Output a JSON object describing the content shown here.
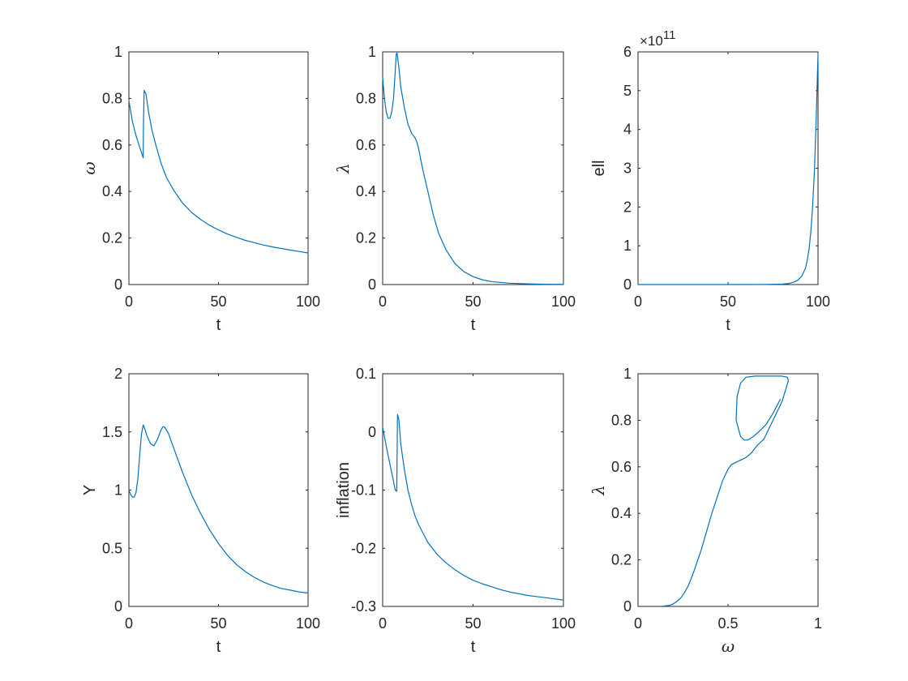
{
  "colors": {
    "line": "#0072bd",
    "axes": "#262626",
    "background": "#ffffff"
  },
  "chart_data": [
    {
      "type": "line",
      "id": "omega-vs-t",
      "xlabel": "t",
      "ylabel": "ω",
      "xlim": [
        0,
        100
      ],
      "ylim": [
        0,
        1
      ],
      "xticks": [
        0,
        50,
        100
      ],
      "yticks": [
        0,
        0.2,
        0.4,
        0.6,
        0.8,
        1
      ],
      "xtick_labels": [
        "0",
        "50",
        "100"
      ],
      "ytick_labels": [
        "0",
        "0.2",
        "0.4",
        "0.6",
        "0.8",
        "1"
      ],
      "exponent": "",
      "grid": false,
      "series": [
        {
          "x": [
            0,
            2,
            4,
            6,
            8,
            8.1,
            8.5,
            9.5,
            11,
            13,
            15,
            18,
            21,
            25,
            30,
            35,
            40,
            45,
            50,
            55,
            60,
            65,
            70,
            75,
            80,
            85,
            90,
            95,
            100
          ],
          "y": [
            0.79,
            0.7,
            0.64,
            0.59,
            0.545,
            0.68,
            0.835,
            0.82,
            0.74,
            0.66,
            0.6,
            0.52,
            0.46,
            0.405,
            0.35,
            0.31,
            0.28,
            0.255,
            0.235,
            0.217,
            0.203,
            0.19,
            0.18,
            0.17,
            0.162,
            0.155,
            0.148,
            0.142,
            0.136
          ]
        }
      ]
    },
    {
      "type": "line",
      "id": "lambda-vs-t",
      "xlabel": "t",
      "ylabel": "λ",
      "xlim": [
        0,
        100
      ],
      "ylim": [
        0,
        1
      ],
      "xticks": [
        0,
        50,
        100
      ],
      "yticks": [
        0,
        0.2,
        0.4,
        0.6,
        0.8,
        1
      ],
      "xtick_labels": [
        "0",
        "50",
        "100"
      ],
      "ytick_labels": [
        "0",
        "0.2",
        "0.4",
        "0.6",
        "0.8",
        "1"
      ],
      "exponent": "",
      "grid": false,
      "series": [
        {
          "x": [
            0,
            1,
            2,
            3,
            4,
            5,
            6,
            7,
            7.5,
            8,
            9,
            10,
            12,
            14,
            16,
            18,
            19,
            20,
            22,
            25,
            28,
            31,
            35,
            40,
            45,
            50,
            55,
            60,
            70,
            80,
            90,
            100
          ],
          "y": [
            0.89,
            0.8,
            0.74,
            0.715,
            0.715,
            0.74,
            0.8,
            0.92,
            0.99,
            0.995,
            0.93,
            0.85,
            0.76,
            0.69,
            0.65,
            0.63,
            0.61,
            0.58,
            0.5,
            0.4,
            0.3,
            0.22,
            0.15,
            0.09,
            0.055,
            0.034,
            0.021,
            0.013,
            0.006,
            0.003,
            0.0015,
            0.001
          ]
        }
      ]
    },
    {
      "type": "line",
      "id": "ell-vs-t",
      "xlabel": "t",
      "ylabel": "ell",
      "xlim": [
        0,
        100
      ],
      "ylim": [
        0,
        6
      ],
      "xticks": [
        0,
        50,
        100
      ],
      "yticks": [
        0,
        1,
        2,
        3,
        4,
        5,
        6
      ],
      "xtick_labels": [
        "0",
        "50",
        "100"
      ],
      "ytick_labels": [
        "0",
        "1",
        "2",
        "3",
        "4",
        "5",
        "6"
      ],
      "exponent": "11",
      "exponent_prefix": "×10",
      "grid": false,
      "series": [
        {
          "x": [
            0,
            50,
            70,
            80,
            84,
            87,
            89,
            91,
            93,
            94,
            95,
            96,
            97,
            98,
            99,
            100
          ],
          "y": [
            0,
            0,
            0.002,
            0.01,
            0.03,
            0.07,
            0.12,
            0.22,
            0.42,
            0.62,
            0.9,
            1.35,
            2.0,
            2.95,
            4.3,
            5.95
          ]
        }
      ]
    },
    {
      "type": "line",
      "id": "y-vs-t",
      "xlabel": "t",
      "ylabel": "Y",
      "xlim": [
        0,
        100
      ],
      "ylim": [
        0,
        2
      ],
      "xticks": [
        0,
        50,
        100
      ],
      "yticks": [
        0,
        0.5,
        1,
        1.5,
        2
      ],
      "xtick_labels": [
        "0",
        "50",
        "100"
      ],
      "ytick_labels": [
        "0",
        "0.5",
        "1",
        "1.5",
        "2"
      ],
      "exponent": "",
      "grid": false,
      "series": [
        {
          "x": [
            0,
            1,
            2,
            3,
            4,
            5,
            6,
            7,
            8,
            9,
            10,
            12,
            14,
            16,
            18,
            19,
            20,
            22,
            25,
            30,
            35,
            40,
            45,
            50,
            55,
            60,
            65,
            70,
            75,
            80,
            85,
            90,
            95,
            100
          ],
          "y": [
            1.0,
            0.96,
            0.94,
            0.94,
            0.98,
            1.1,
            1.3,
            1.48,
            1.56,
            1.52,
            1.47,
            1.4,
            1.38,
            1.44,
            1.52,
            1.545,
            1.54,
            1.49,
            1.36,
            1.15,
            0.96,
            0.8,
            0.66,
            0.54,
            0.44,
            0.36,
            0.3,
            0.25,
            0.21,
            0.18,
            0.155,
            0.14,
            0.125,
            0.115
          ]
        }
      ]
    },
    {
      "type": "line",
      "id": "inflation-vs-t",
      "xlabel": "t",
      "ylabel": "inflation",
      "xlim": [
        0,
        100
      ],
      "ylim": [
        -0.3,
        0.1
      ],
      "xticks": [
        0,
        50,
        100
      ],
      "yticks": [
        -0.3,
        -0.2,
        -0.1,
        0,
        0.1
      ],
      "xtick_labels": [
        "0",
        "50",
        "100"
      ],
      "ytick_labels": [
        "-0.3",
        "-0.2",
        "-0.1",
        "0",
        "0.1"
      ],
      "exponent": "",
      "grid": false,
      "series": [
        {
          "x": [
            0,
            2,
            4,
            6,
            7,
            7.8,
            8.2,
            9,
            10,
            12,
            14,
            16,
            18,
            20,
            25,
            30,
            35,
            40,
            45,
            50,
            55,
            60,
            65,
            70,
            75,
            80,
            85,
            90,
            95,
            100
          ],
          "y": [
            0.008,
            -0.025,
            -0.055,
            -0.085,
            -0.1,
            -0.102,
            0.03,
            0.02,
            -0.02,
            -0.065,
            -0.1,
            -0.125,
            -0.145,
            -0.16,
            -0.19,
            -0.21,
            -0.225,
            -0.237,
            -0.247,
            -0.255,
            -0.261,
            -0.266,
            -0.271,
            -0.275,
            -0.278,
            -0.281,
            -0.283,
            -0.285,
            -0.287,
            -0.289
          ]
        }
      ]
    },
    {
      "type": "line",
      "id": "lambda-vs-omega",
      "xlabel": "ω",
      "ylabel": "λ",
      "xlim": [
        0,
        1
      ],
      "ylim": [
        0,
        1
      ],
      "xticks": [
        0,
        0.5,
        1
      ],
      "yticks": [
        0,
        0.2,
        0.4,
        0.6,
        0.8,
        1
      ],
      "xtick_labels": [
        "0",
        "0.5",
        "1"
      ],
      "ytick_labels": [
        "0",
        "0.2",
        "0.4",
        "0.6",
        "0.8",
        "1"
      ],
      "exponent": "",
      "grid": false,
      "series": [
        {
          "x": [
            0.79,
            0.75,
            0.71,
            0.67,
            0.64,
            0.61,
            0.59,
            0.57,
            0.545,
            0.55,
            0.57,
            0.6,
            0.65,
            0.7,
            0.75,
            0.8,
            0.83,
            0.835,
            0.82,
            0.8,
            0.75,
            0.7,
            0.66,
            0.63,
            0.6,
            0.56,
            0.52,
            0.5,
            0.47,
            0.44,
            0.41,
            0.38,
            0.35,
            0.31,
            0.28,
            0.255,
            0.235,
            0.215,
            0.2,
            0.19,
            0.18,
            0.17,
            0.16,
            0.15,
            0.14,
            0.136
          ],
          "y": [
            0.89,
            0.83,
            0.78,
            0.75,
            0.73,
            0.715,
            0.715,
            0.73,
            0.8,
            0.9,
            0.96,
            0.985,
            0.99,
            0.99,
            0.99,
            0.99,
            0.985,
            0.97,
            0.93,
            0.88,
            0.8,
            0.72,
            0.69,
            0.66,
            0.64,
            0.625,
            0.61,
            0.59,
            0.54,
            0.47,
            0.4,
            0.32,
            0.24,
            0.15,
            0.09,
            0.055,
            0.034,
            0.021,
            0.013,
            0.009,
            0.006,
            0.004,
            0.003,
            0.002,
            0.001,
            0.001
          ]
        }
      ]
    }
  ]
}
